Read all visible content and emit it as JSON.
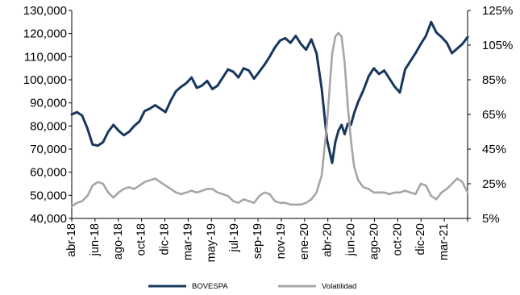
{
  "chart_data": {
    "type": "line",
    "title": "",
    "xlabel": "",
    "ylabel_left": "",
    "ylabel_right": "",
    "x_tick_labels": [
      "abr-18",
      "jun-18",
      "ago-18",
      "oct-18",
      "dic-18",
      "mar-19",
      "may-19",
      "jul-19",
      "sep-19",
      "nov-19",
      "ene-20",
      "abr-20",
      "jun-20",
      "ago-20",
      "oct-20",
      "dic-20",
      "mar-21"
    ],
    "y_left": {
      "min": 40000,
      "max": 130000,
      "ticks": [
        "40,000",
        "50,000",
        "60,000",
        "70,000",
        "80,000",
        "90,000",
        "100,000",
        "110,000",
        "120,000",
        "130,000"
      ]
    },
    "y_right": {
      "min": 5,
      "max": 125,
      "unit": "%",
      "ticks": [
        "5%",
        "25%",
        "45%",
        "65%",
        "85%",
        "105%",
        "125%"
      ]
    },
    "x_range": [
      0,
      38
    ],
    "grid": false,
    "legend_position": "bottom",
    "series": [
      {
        "name": "BOVESPA",
        "axis": "left",
        "color": "#17375e",
        "x": [
          0,
          0.5,
          1,
          1.5,
          2,
          2.5,
          3,
          3.5,
          4,
          4.5,
          5,
          5.5,
          6,
          6.5,
          7,
          7.5,
          8,
          8.5,
          9,
          9.5,
          10,
          10.5,
          11,
          11.5,
          12,
          12.5,
          13,
          13.5,
          14,
          14.5,
          15,
          15.5,
          16,
          16.5,
          17,
          17.5,
          18,
          18.5,
          19,
          19.5,
          20,
          20.5,
          21,
          21.5,
          22,
          22.5,
          23,
          23.5,
          24,
          24.5,
          25,
          25.3,
          25.6,
          25.9,
          26.2,
          26.5,
          26.8,
          27.1,
          27.5,
          28,
          28.5,
          29,
          29.5,
          30,
          30.5,
          31,
          31.5,
          32,
          32.5,
          33,
          33.5,
          34,
          34.5,
          35,
          35.5,
          36,
          36.5,
          37,
          37.5,
          38
        ],
        "values": [
          85000,
          86000,
          84500,
          79000,
          72000,
          71500,
          73000,
          77500,
          80500,
          78000,
          76000,
          77500,
          80000,
          82000,
          86500,
          87500,
          89000,
          87500,
          86000,
          91000,
          95000,
          97000,
          98500,
          101000,
          96500,
          97500,
          99500,
          96000,
          97500,
          101000,
          104500,
          103500,
          101000,
          105000,
          104000,
          100500,
          103500,
          106500,
          110000,
          114000,
          117000,
          118000,
          116000,
          119000,
          115500,
          113000,
          117500,
          111500,
          96000,
          74000,
          64000,
          73000,
          78000,
          80500,
          76500,
          81000,
          80500,
          85500,
          90500,
          95500,
          101500,
          105000,
          102500,
          104000,
          100500,
          97000,
          94500,
          104500,
          108000,
          111500,
          115500,
          119000,
          125000,
          120500,
          118500,
          116000,
          111500,
          113500,
          115500,
          118500
        ]
      },
      {
        "name": "Volatilidad",
        "axis": "right",
        "color": "#a6a6a6",
        "x": [
          0,
          0.5,
          1,
          1.5,
          2,
          2.5,
          3,
          3.5,
          4,
          4.5,
          5,
          5.5,
          6,
          6.5,
          7,
          7.5,
          8,
          8.5,
          9,
          9.5,
          10,
          10.5,
          11,
          11.5,
          12,
          12.5,
          13,
          13.5,
          14,
          14.5,
          15,
          15.5,
          16,
          16.5,
          17,
          17.5,
          18,
          18.5,
          19,
          19.5,
          20,
          20.5,
          21,
          21.5,
          22,
          22.5,
          23,
          23.5,
          24,
          24.5,
          25,
          25.3,
          25.6,
          25.9,
          26.2,
          26.5,
          26.8,
          27.1,
          27.5,
          28,
          28.5,
          29,
          29.5,
          30,
          30.5,
          31,
          31.5,
          32,
          32.5,
          33,
          33.5,
          34,
          34.5,
          35,
          35.5,
          36,
          36.5,
          37,
          37.5,
          38
        ],
        "values": [
          12,
          14,
          15,
          18,
          24,
          26,
          25,
          20,
          17,
          20,
          22,
          23,
          22,
          24,
          26,
          27,
          28,
          26,
          24,
          22,
          20,
          19,
          20,
          21,
          20,
          21,
          22,
          22,
          20,
          19,
          18,
          15,
          14,
          16,
          15,
          14,
          18,
          20,
          19,
          15,
          14,
          14,
          13,
          13,
          13,
          14,
          16,
          20,
          30,
          60,
          100,
          110,
          112,
          110,
          95,
          70,
          50,
          35,
          27,
          23,
          22,
          20,
          20,
          20,
          19,
          20,
          20,
          21,
          20,
          19,
          25,
          24,
          18,
          16,
          20,
          22,
          25,
          28,
          26,
          20
        ]
      }
    ]
  }
}
